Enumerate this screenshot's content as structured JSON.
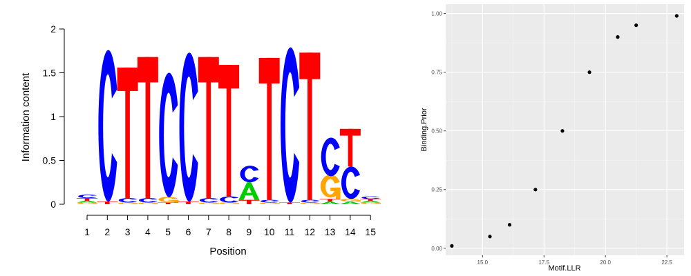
{
  "chart_data": [
    {
      "type": "sequence-logo",
      "xlabel": "Position",
      "ylabel": "Information content",
      "ylim": [
        0,
        2
      ],
      "yticks": [
        0,
        0.5,
        1,
        1.5,
        2
      ],
      "ytick_labels": [
        "0",
        "0.5",
        "1",
        "1.5",
        "2"
      ],
      "positions": [
        "1",
        "2",
        "3",
        "4",
        "5",
        "6",
        "7",
        "8",
        "9",
        "10",
        "11",
        "12",
        "13",
        "14",
        "15"
      ],
      "letter_colors": {
        "A": "#00cc00",
        "C": "#0000ff",
        "G": "#ffa500",
        "T": "#ff0000"
      },
      "stacks": [
        [
          {
            "letter": "G",
            "height": 0.02
          },
          {
            "letter": "A",
            "height": 0.02
          },
          {
            "letter": "T",
            "height": 0.03
          },
          {
            "letter": "C",
            "height": 0.04
          }
        ],
        [
          {
            "letter": "T",
            "height": 0.03
          },
          {
            "letter": "C",
            "height": 1.73
          }
        ],
        [
          {
            "letter": "G",
            "height": 0.02
          },
          {
            "letter": "C",
            "height": 0.05
          },
          {
            "letter": "T",
            "height": 1.49
          }
        ],
        [
          {
            "letter": "G",
            "height": 0.02
          },
          {
            "letter": "C",
            "height": 0.05
          },
          {
            "letter": "T",
            "height": 1.61
          }
        ],
        [
          {
            "letter": "T",
            "height": 0.02
          },
          {
            "letter": "G",
            "height": 0.06
          },
          {
            "letter": "C",
            "height": 1.42
          }
        ],
        [
          {
            "letter": "T",
            "height": 0.03
          },
          {
            "letter": "C",
            "height": 1.7
          }
        ],
        [
          {
            "letter": "G",
            "height": 0.02
          },
          {
            "letter": "C",
            "height": 0.05
          },
          {
            "letter": "T",
            "height": 1.61
          }
        ],
        [
          {
            "letter": "G",
            "height": 0.02
          },
          {
            "letter": "C",
            "height": 0.07
          },
          {
            "letter": "T",
            "height": 1.5
          }
        ],
        [
          {
            "letter": "T",
            "height": 0.05
          },
          {
            "letter": "A",
            "height": 0.2
          },
          {
            "letter": "C",
            "height": 0.19
          }
        ],
        [
          {
            "letter": "G",
            "height": 0.02
          },
          {
            "letter": "C",
            "height": 0.03
          },
          {
            "letter": "T",
            "height": 1.62
          }
        ],
        [
          {
            "letter": "T",
            "height": 0.02
          },
          {
            "letter": "C",
            "height": 1.77
          }
        ],
        [
          {
            "letter": "G",
            "height": 0.02
          },
          {
            "letter": "C",
            "height": 0.03
          },
          {
            "letter": "T",
            "height": 1.68
          }
        ],
        [
          {
            "letter": "A",
            "height": 0.03
          },
          {
            "letter": "T",
            "height": 0.03
          },
          {
            "letter": "G",
            "height": 0.26
          },
          {
            "letter": "C",
            "height": 0.44
          }
        ],
        [
          {
            "letter": "A",
            "height": 0.03
          },
          {
            "letter": "G",
            "height": 0.03
          },
          {
            "letter": "C",
            "height": 0.37
          },
          {
            "letter": "T",
            "height": 0.43
          }
        ],
        [
          {
            "letter": "G",
            "height": 0.02
          },
          {
            "letter": "A",
            "height": 0.02
          },
          {
            "letter": "T",
            "height": 0.02
          },
          {
            "letter": "C",
            "height": 0.03
          }
        ]
      ]
    },
    {
      "type": "scatter",
      "xlabel": "Motif.LLR",
      "ylabel": "Binding.Prior",
      "xlim": [
        13.5,
        23.2
      ],
      "ylim": [
        -0.03,
        1.04
      ],
      "xticks": [
        15.0,
        17.5,
        20.0,
        22.5
      ],
      "xtick_labels": [
        "15.0",
        "17.5",
        "20.0",
        "22.5"
      ],
      "yticks": [
        0,
        0.25,
        0.5,
        0.75,
        1
      ],
      "ytick_labels": [
        "0.00",
        "0.25",
        "0.50",
        "0.75",
        "1.00"
      ],
      "grid": true,
      "panel_color": "#ebebeb",
      "x": [
        13.75,
        15.3,
        16.1,
        17.15,
        18.25,
        19.35,
        20.5,
        21.25,
        22.9
      ],
      "y": [
        0.01,
        0.05,
        0.1,
        0.25,
        0.5,
        0.75,
        0.9,
        0.95,
        0.99
      ]
    }
  ]
}
